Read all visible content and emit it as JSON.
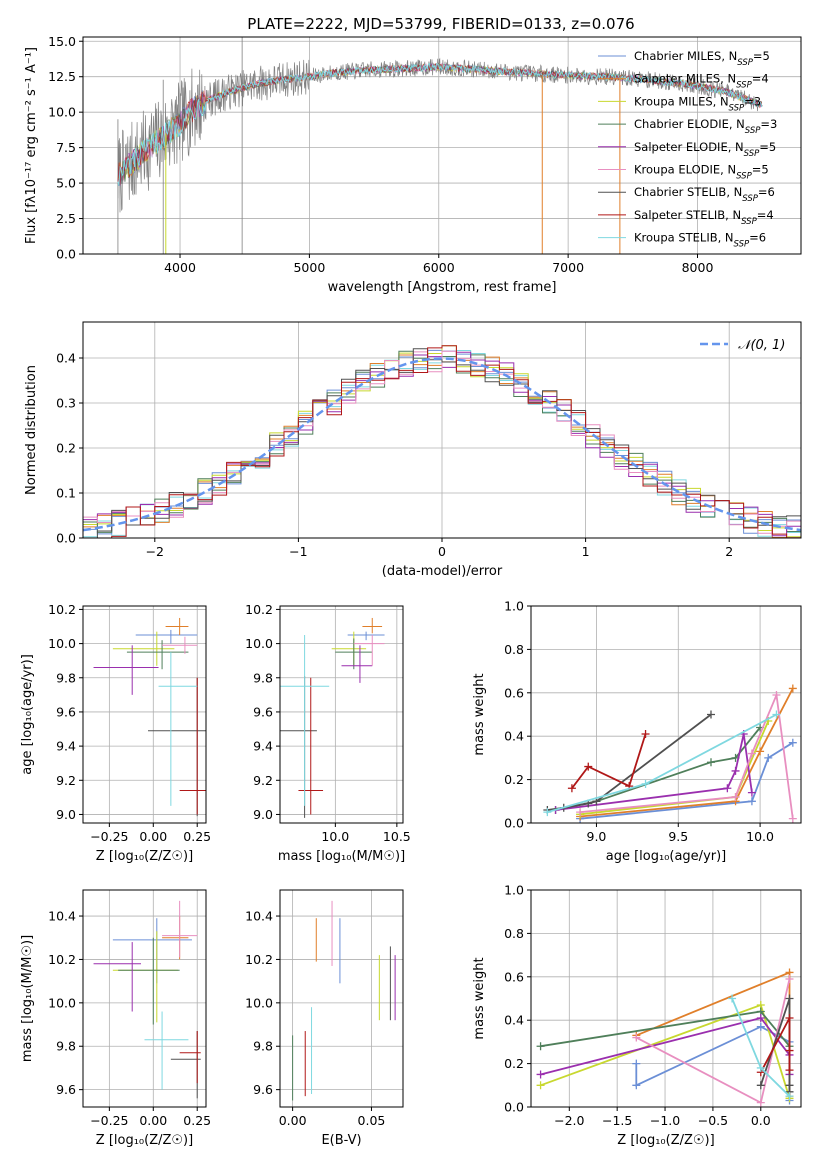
{
  "figure": {
    "title": "PLATE=2222, MJD=53799, FIBERID=0133, z=0.076"
  },
  "colors": {
    "observed": "#808080",
    "series": [
      "#6b8fd6",
      "#e07f2a",
      "#c8d82f",
      "#4f7f5a",
      "#9a2fae",
      "#e88fc0",
      "#505050",
      "#b01818",
      "#7fd8e0"
    ],
    "gaussian": "#6495ed"
  },
  "chart_data": [
    {
      "type": "line",
      "panel": "spectrum",
      "xlabel": "wavelength [Angstrom, rest frame]",
      "ylabel": "Flux [fλ10⁻¹⁷ erg cm⁻² s⁻¹ A⁻¹]",
      "xlim": [
        3250,
        8800
      ],
      "ylim": [
        0,
        15.3
      ],
      "xticks": [
        4000,
        5000,
        6000,
        7000,
        8000
      ],
      "yticks": [
        0.0,
        2.5,
        5.0,
        7.5,
        10.0,
        12.5,
        15.0
      ],
      "ytick_labels": [
        "0.0",
        "2.5",
        "5.0",
        "7.5",
        "10.0",
        "12.5",
        "15.0"
      ],
      "legend_position": "upper right",
      "continuum": {
        "x": [
          3520,
          3600,
          3700,
          3800,
          3900,
          4000,
          4100,
          4200,
          4400,
          4600,
          4800,
          5000,
          5200,
          5500,
          5800,
          6000,
          6300,
          6600,
          6800,
          7000,
          7300,
          7600,
          7900,
          8200,
          8500
        ],
        "y": [
          5.5,
          6.2,
          7.0,
          7.8,
          8.5,
          9.2,
          10.2,
          10.8,
          11.5,
          12.0,
          12.3,
          12.5,
          12.8,
          13.0,
          13.1,
          13.2,
          13.0,
          12.8,
          12.7,
          12.6,
          12.5,
          12.3,
          12.0,
          11.5,
          10.5
        ]
      },
      "series": [
        {
          "name": "Chabrier MILES",
          "nssp": "5"
        },
        {
          "name": "Salpeter MILES",
          "nssp": "4"
        },
        {
          "name": "Kroupa MILES",
          "nssp": "3"
        },
        {
          "name": "Chabrier ELODIE",
          "nssp": "3"
        },
        {
          "name": "Salpeter ELODIE",
          "nssp": "5"
        },
        {
          "name": "Kroupa ELODIE",
          "nssp": "5"
        },
        {
          "name": "Chabrier STELIB",
          "nssp": "6"
        },
        {
          "name": "Salpeter STELIB",
          "nssp": "4"
        },
        {
          "name": "Kroupa STELIB",
          "nssp": "6"
        }
      ],
      "legend_sub": "SSP",
      "legend_prefix": "N",
      "legend_eq": "="
    },
    {
      "type": "histogram",
      "panel": "residuals",
      "xlabel": "(data-model)/error",
      "ylabel": "Normed distribution",
      "xlim": [
        -2.5,
        2.5
      ],
      "ylim": [
        0,
        0.48
      ],
      "xticks": [
        -2,
        -1,
        0,
        1,
        2
      ],
      "xtick_labels": [
        "−2",
        "−1",
        "0",
        "1",
        "2"
      ],
      "yticks": [
        0.0,
        0.1,
        0.2,
        0.3,
        0.4
      ],
      "ytick_labels": [
        "0.0",
        "0.1",
        "0.2",
        "0.3",
        "0.4"
      ],
      "bin_width": 0.1,
      "grid": true,
      "legend_label": "𝒩(0, 1)",
      "legend_position": "upper right"
    },
    {
      "type": "errorbar",
      "panel": "age-vs-Z",
      "xlabel": "Z [log₁₀(Z/Z☉)]",
      "ylabel": "age  [log₁₀(age/yr)]",
      "xlim": [
        -0.4,
        0.3
      ],
      "ylim": [
        8.95,
        10.22
      ],
      "xticks": [
        -0.25,
        0.0,
        0.25
      ],
      "xtick_labels": [
        "−0.25",
        "0.00",
        "0.25"
      ],
      "yticks": [
        9.0,
        9.2,
        9.4,
        9.6,
        9.8,
        10.0,
        10.2
      ],
      "ytick_labels": [
        "9.0",
        "9.2",
        "9.4",
        "9.6",
        "9.8",
        "10.0",
        "10.2"
      ],
      "points": [
        {
          "series": 0,
          "x": 0.1,
          "xerr": [
            0.2,
            0.15
          ],
          "y": 10.05,
          "yerr": [
            0.05,
            0.03
          ]
        },
        {
          "series": 1,
          "x": 0.15,
          "xerr": [
            0.08,
            0.05
          ],
          "y": 10.1,
          "yerr": [
            0.05,
            0.05
          ]
        },
        {
          "series": 2,
          "x": 0.02,
          "xerr": [
            0.25,
            0.1
          ],
          "y": 9.97,
          "yerr": [
            0.1,
            0.1
          ]
        },
        {
          "series": 3,
          "x": 0.05,
          "xerr": [
            0.2,
            0.15
          ],
          "y": 9.95,
          "yerr": [
            0.1,
            0.07
          ]
        },
        {
          "series": 4,
          "x": -0.12,
          "xerr": [
            0.22,
            0.15
          ],
          "y": 9.86,
          "yerr": [
            0.16,
            0.13
          ]
        },
        {
          "series": 5,
          "x": 0.18,
          "xerr": [
            0.13,
            0.07
          ],
          "y": 9.99,
          "yerr": [
            0.05,
            0.05
          ]
        },
        {
          "series": 6,
          "x": 0.25,
          "xerr": [
            0.28,
            0.05
          ],
          "y": 9.49,
          "yerr": [
            0.5,
            0.31
          ]
        },
        {
          "series": 7,
          "x": 0.25,
          "xerr": [
            0.1,
            0.05
          ],
          "y": 9.14,
          "yerr": [
            0.14,
            0.66
          ]
        },
        {
          "series": 8,
          "x": 0.1,
          "xerr": [
            0.07,
            0.15
          ],
          "y": 9.75,
          "yerr": [
            0.7,
            0.2
          ]
        }
      ]
    },
    {
      "type": "errorbar",
      "panel": "age-vs-mass",
      "xlabel": "mass [log₁₀(M/M☉)]",
      "xlim": [
        9.55,
        10.55
      ],
      "ylim": [
        8.95,
        10.22
      ],
      "xticks": [
        10.0,
        10.5
      ],
      "xtick_labels": [
        "10.0",
        "10.5"
      ],
      "yticks": [
        9.0,
        9.2,
        9.4,
        9.6,
        9.8,
        10.0,
        10.2
      ],
      "ytick_labels": [
        "9.0",
        "9.2",
        "9.4",
        "9.6",
        "9.8",
        "10.0",
        "10.2"
      ],
      "points": [
        {
          "series": 0,
          "x": 10.25,
          "xerr": [
            0.15,
            0.15
          ],
          "y": 10.05,
          "yerr": [
            0.03,
            0.02
          ]
        },
        {
          "series": 1,
          "x": 10.3,
          "xerr": [
            0.08,
            0.08
          ],
          "y": 10.1,
          "yerr": [
            0.04,
            0.05
          ]
        },
        {
          "series": 2,
          "x": 10.15,
          "xerr": [
            0.18,
            0.1
          ],
          "y": 9.97,
          "yerr": [
            0.1,
            0.1
          ]
        },
        {
          "series": 3,
          "x": 10.15,
          "xerr": [
            0.15,
            0.15
          ],
          "y": 9.95,
          "yerr": [
            0.1,
            0.08
          ]
        },
        {
          "series": 4,
          "x": 10.2,
          "xerr": [
            0.15,
            0.1
          ],
          "y": 9.87,
          "yerr": [
            0.1,
            0.12
          ]
        },
        {
          "series": 5,
          "x": 10.3,
          "xerr": [
            0.15,
            0.1
          ],
          "y": 10.0,
          "yerr": [
            0.13,
            0.05
          ]
        },
        {
          "series": 6,
          "x": 9.75,
          "xerr": [
            0.2,
            0.1
          ],
          "y": 9.49,
          "yerr": [
            0.51,
            0.32
          ]
        },
        {
          "series": 7,
          "x": 9.8,
          "xerr": [
            0.1,
            0.1
          ],
          "y": 9.14,
          "yerr": [
            0.14,
            0.66
          ]
        },
        {
          "series": 8,
          "x": 9.75,
          "xerr": [
            0.2,
            0.2
          ],
          "y": 9.75,
          "yerr": [
            0.7,
            0.3
          ]
        }
      ]
    },
    {
      "type": "line",
      "panel": "weight-vs-age",
      "xlabel": "age  [log₁₀(age/yr)]",
      "ylabel": "mass weight",
      "xlim": [
        8.6,
        10.25
      ],
      "ylim": [
        0,
        1
      ],
      "xticks": [
        9.0,
        9.5,
        10.0
      ],
      "xtick_labels": [
        "9.0",
        "9.5",
        "10.0"
      ],
      "yticks": [
        0.0,
        0.2,
        0.4,
        0.6,
        0.8,
        1.0
      ],
      "ytick_labels": [
        "0.0",
        "0.2",
        "0.4",
        "0.6",
        "0.8",
        "1.0"
      ],
      "series": [
        {
          "x": [
            8.9,
            9.95,
            10.05,
            10.2
          ],
          "y": [
            0.02,
            0.1,
            0.3,
            0.37
          ]
        },
        {
          "x": [
            8.9,
            9.85,
            10.0,
            10.2
          ],
          "y": [
            0.03,
            0.1,
            0.33,
            0.62
          ]
        },
        {
          "x": [
            8.9,
            9.85,
            10.05
          ],
          "y": [
            0.04,
            0.12,
            0.47
          ]
        },
        {
          "x": [
            8.75,
            9.0,
            9.7,
            9.85,
            10.0
          ],
          "y": [
            0.06,
            0.1,
            0.28,
            0.3,
            0.44
          ]
        },
        {
          "x": [
            8.75,
            9.8,
            9.85,
            9.9,
            9.95
          ],
          "y": [
            0.06,
            0.16,
            0.24,
            0.41,
            0.14
          ]
        },
        {
          "x": [
            8.9,
            9.85,
            9.95,
            10.1,
            10.2
          ],
          "y": [
            0.05,
            0.12,
            0.32,
            0.59,
            0.02
          ]
        },
        {
          "x": [
            8.7,
            8.8,
            8.95,
            9.0,
            9.7
          ],
          "y": [
            0.06,
            0.07,
            0.09,
            0.1,
            0.5
          ]
        },
        {
          "x": [
            8.85,
            8.95,
            9.2,
            9.3
          ],
          "y": [
            0.16,
            0.26,
            0.17,
            0.41
          ]
        },
        {
          "x": [
            8.7,
            9.3,
            10.1
          ],
          "y": [
            0.05,
            0.18,
            0.5
          ]
        }
      ]
    },
    {
      "type": "errorbar",
      "panel": "mass-vs-Z",
      "xlabel": "Z [log₁₀(Z/Z☉)]",
      "ylabel": "mass [log₁₀(M/M☉)]",
      "xlim": [
        -0.4,
        0.3
      ],
      "ylim": [
        9.52,
        10.52
      ],
      "xticks": [
        -0.25,
        0.0,
        0.25
      ],
      "xtick_labels": [
        "−0.25",
        "0.00",
        "0.25"
      ],
      "yticks": [
        9.6,
        9.8,
        10.0,
        10.2,
        10.4
      ],
      "ytick_labels": [
        "9.6",
        "9.8",
        "10.0",
        "10.2",
        "10.4"
      ],
      "points": [
        {
          "series": 0,
          "x": 0.02,
          "xerr": [
            0.25,
            0.2
          ],
          "y": 10.29,
          "yerr": [
            0.2,
            0.1
          ]
        },
        {
          "series": 1,
          "x": 0.15,
          "xerr": [
            0.1,
            0.05
          ],
          "y": 10.3,
          "yerr": [
            0.1,
            0.1
          ]
        },
        {
          "series": 2,
          "x": 0.02,
          "xerr": [
            0.25,
            0.12
          ],
          "y": 10.15,
          "yerr": [
            0.24,
            0.18
          ]
        },
        {
          "series": 3,
          "x": 0.0,
          "xerr": [
            0.2,
            0.15
          ],
          "y": 10.15,
          "yerr": [
            0.25,
            0.15
          ]
        },
        {
          "series": 4,
          "x": -0.12,
          "xerr": [
            0.22,
            0.05
          ],
          "y": 10.18,
          "yerr": [
            0.22,
            0.1
          ]
        },
        {
          "series": 5,
          "x": 0.15,
          "xerr": [
            0.1,
            0.1
          ],
          "y": 10.31,
          "yerr": [
            0.1,
            0.16
          ]
        },
        {
          "series": 6,
          "x": 0.25,
          "xerr": [
            0.15,
            0.02
          ],
          "y": 9.74,
          "yerr": [
            0.18,
            0.13
          ]
        },
        {
          "series": 7,
          "x": 0.25,
          "xerr": [
            0.1,
            0.02
          ],
          "y": 9.77,
          "yerr": [
            0.14,
            0.1
          ]
        },
        {
          "series": 8,
          "x": 0.05,
          "xerr": [
            0.1,
            0.15
          ],
          "y": 9.83,
          "yerr": [
            0.23,
            0.13
          ]
        }
      ]
    },
    {
      "type": "errorbar",
      "panel": "mass-vs-EBV",
      "xlabel": "E(B-V)",
      "xlim": [
        -0.008,
        0.07
      ],
      "ylim": [
        9.52,
        10.52
      ],
      "xticks": [
        0.0,
        0.05
      ],
      "xtick_labels": [
        "0.00",
        "0.05"
      ],
      "yticks": [
        9.6,
        9.8,
        10.0,
        10.2,
        10.4
      ],
      "ytick_labels": [
        "9.6",
        "9.8",
        "10.0",
        "10.2",
        "10.4"
      ],
      "points": [
        {
          "series": 0,
          "x": 0.03,
          "y": 10.24,
          "yerr": [
            0.15,
            0.15
          ]
        },
        {
          "series": 1,
          "x": 0.015,
          "y": 10.29,
          "yerr": [
            0.1,
            0.1
          ]
        },
        {
          "series": 2,
          "x": 0.055,
          "y": 10.07,
          "yerr": [
            0.15,
            0.15
          ]
        },
        {
          "series": 3,
          "x": 0.0,
          "y": 9.7,
          "yerr": [
            0.15,
            0.15
          ]
        },
        {
          "series": 4,
          "x": 0.065,
          "y": 10.07,
          "yerr": [
            0.15,
            0.15
          ]
        },
        {
          "series": 5,
          "x": 0.025,
          "y": 10.32,
          "yerr": [
            0.15,
            0.15
          ]
        },
        {
          "series": 6,
          "x": 0.062,
          "y": 10.09,
          "yerr": [
            0.17,
            0.17
          ]
        },
        {
          "series": 7,
          "x": 0.008,
          "y": 9.72,
          "yerr": [
            0.15,
            0.15
          ]
        },
        {
          "series": 8,
          "x": 0.012,
          "y": 9.78,
          "yerr": [
            0.2,
            0.2
          ]
        }
      ]
    },
    {
      "type": "line",
      "panel": "weight-vs-Z",
      "xlabel": "Z [log₁₀(Z/Z☉)]",
      "ylabel": "mass weight",
      "xlim": [
        -2.4,
        0.42
      ],
      "ylim": [
        0,
        1
      ],
      "xticks": [
        -2.0,
        -1.5,
        -1.0,
        -0.5,
        0.0
      ],
      "xtick_labels": [
        "−2.0",
        "−1.5",
        "−1.0",
        "−0.5",
        "0.0"
      ],
      "yticks": [
        0.0,
        0.2,
        0.4,
        0.6,
        0.8,
        1.0
      ],
      "ytick_labels": [
        "0.0",
        "0.2",
        "0.4",
        "0.6",
        "0.8",
        "1.0"
      ],
      "series": [
        {
          "x": [
            -1.3,
            -1.3,
            0.0,
            0.3,
            0.3
          ],
          "y": [
            0.2,
            0.1,
            0.37,
            0.3,
            0.03
          ]
        },
        {
          "x": [
            -1.3,
            0.3,
            0.3
          ],
          "y": [
            0.33,
            0.62,
            0.05
          ]
        },
        {
          "x": [
            -2.3,
            0.0,
            0.3
          ],
          "y": [
            0.1,
            0.47,
            0.04
          ]
        },
        {
          "x": [
            -2.3,
            0.0,
            0.3
          ],
          "y": [
            0.28,
            0.44,
            0.28
          ]
        },
        {
          "x": [
            -2.3,
            0.0,
            0.3,
            0.3
          ],
          "y": [
            0.15,
            0.41,
            0.24,
            0.15
          ]
        },
        {
          "x": [
            -1.3,
            0.0,
            0.3
          ],
          "y": [
            0.32,
            0.02,
            0.59
          ]
        },
        {
          "x": [
            0.0,
            0.3,
            0.3,
            0.3
          ],
          "y": [
            0.1,
            0.5,
            0.1,
            0.07
          ]
        },
        {
          "x": [
            0.0,
            0.3,
            0.3,
            0.3
          ],
          "y": [
            0.16,
            0.41,
            0.26,
            0.17
          ]
        },
        {
          "x": [
            -0.3,
            0.0,
            0.3
          ],
          "y": [
            0.5,
            0.18,
            0.05
          ]
        }
      ]
    }
  ]
}
